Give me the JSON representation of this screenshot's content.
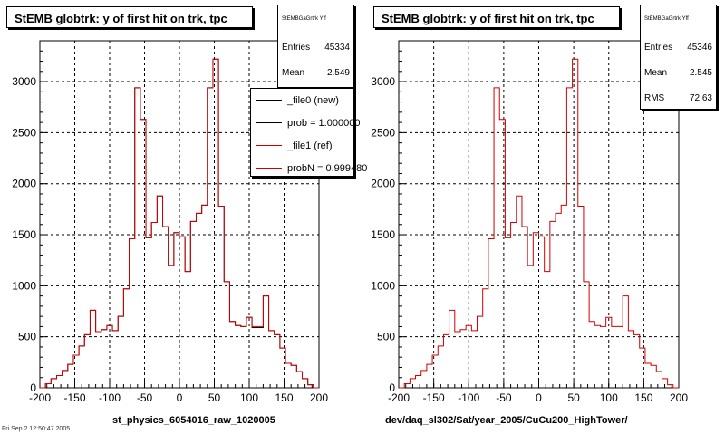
{
  "footer": "Fri Sep  2 12:50:47 2005",
  "colors": {
    "new": "#000000",
    "ref": "#d00000",
    "grid": "#000000"
  },
  "legend": {
    "items": [
      {
        "label": "_file0 (new)",
        "color": "#000000"
      },
      {
        "label": "prob = 1.000000",
        "color": "#000000"
      },
      {
        "label": "_file1 (ref)",
        "color": "#d00000"
      },
      {
        "label": "probN = 0.999480",
        "color": "#d00000"
      }
    ]
  },
  "panels": [
    {
      "title": "StEMB globtrk: y of first hit on trk, tpc",
      "stats": {
        "name": "StEMBGaGrtrk Yff",
        "rows": [
          {
            "label": "Entries",
            "value": "45334"
          },
          {
            "label": "Mean",
            "value": "2.549"
          }
        ]
      },
      "xlabel": "st_physics_6054016_raw_1020005"
    },
    {
      "title": "StEMB globtrk: y of first hit on trk, tpc",
      "stats": {
        "name": "StEMBGaGrtrk Yff",
        "rows": [
          {
            "label": "Entries",
            "value": "45346"
          },
          {
            "label": "Mean",
            "value": "2.545"
          },
          {
            "label": "RMS",
            "value": "72.63"
          }
        ]
      },
      "xlabel": "dev/daq_sl302/Sat/year_2005/CuCu200_HighTower/"
    }
  ],
  "chart_data": [
    {
      "type": "line",
      "title": "StEMB globtrk: y of first hit on trk, tpc",
      "xlabel": "st_physics_6054016_raw_1020005",
      "xlim": [
        -200,
        200
      ],
      "ylim": [
        0,
        3400
      ],
      "xticks": [
        -200,
        -150,
        -100,
        -50,
        0,
        50,
        100,
        150,
        200
      ],
      "yticks": [
        0,
        500,
        1000,
        1500,
        2000,
        2500,
        3000
      ],
      "grid": true,
      "legend_position": "top-right",
      "bin_width": 8,
      "x": [
        -196,
        -188,
        -180,
        -172,
        -164,
        -156,
        -148,
        -140,
        -132,
        -124,
        -116,
        -108,
        -100,
        -92,
        -84,
        -76,
        -68,
        -60,
        -52,
        -44,
        -36,
        -28,
        -20,
        -12,
        -4,
        4,
        12,
        20,
        28,
        36,
        44,
        52,
        60,
        68,
        76,
        84,
        92,
        100,
        108,
        116,
        124,
        132,
        140,
        148,
        156,
        164,
        172,
        180,
        188,
        196
      ],
      "series": [
        {
          "name": "_file0 (new)",
          "values": [
            0,
            40,
            90,
            120,
            170,
            230,
            320,
            410,
            520,
            760,
            550,
            570,
            610,
            560,
            700,
            970,
            1460,
            2940,
            2630,
            1470,
            1620,
            1880,
            1580,
            1200,
            1520,
            1480,
            1140,
            1630,
            1710,
            1790,
            2940,
            3220,
            1780,
            1040,
            650,
            610,
            600,
            690,
            590,
            590,
            900,
            560,
            520,
            390,
            240,
            220,
            160,
            90,
            30,
            0
          ]
        },
        {
          "name": "_file1 (ref)",
          "values": [
            0,
            40,
            90,
            120,
            170,
            230,
            320,
            410,
            520,
            760,
            550,
            570,
            610,
            560,
            700,
            970,
            1460,
            2940,
            2630,
            1470,
            1620,
            1880,
            1580,
            1200,
            1520,
            1480,
            1140,
            1630,
            1710,
            1790,
            2940,
            3220,
            1780,
            1040,
            650,
            610,
            600,
            690,
            600,
            600,
            900,
            560,
            520,
            390,
            240,
            220,
            160,
            90,
            30,
            0
          ]
        }
      ]
    },
    {
      "type": "line",
      "title": "StEMB globtrk: y of first hit on trk, tpc",
      "xlabel": "dev/daq_sl302/Sat/year_2005/CuCu200_HighTower/",
      "xlim": [
        -200,
        200
      ],
      "ylim": [
        0,
        3400
      ],
      "xticks": [
        -200,
        -150,
        -100,
        -50,
        0,
        50,
        100,
        150,
        200
      ],
      "yticks": [
        0,
        500,
        1000,
        1500,
        2000,
        2500,
        3000
      ],
      "grid": true,
      "bin_width": 8,
      "x": [
        -196,
        -188,
        -180,
        -172,
        -164,
        -156,
        -148,
        -140,
        -132,
        -124,
        -116,
        -108,
        -100,
        -92,
        -84,
        -76,
        -68,
        -60,
        -52,
        -44,
        -36,
        -28,
        -20,
        -12,
        -4,
        4,
        12,
        20,
        28,
        36,
        44,
        52,
        60,
        68,
        76,
        84,
        92,
        100,
        108,
        116,
        124,
        132,
        140,
        148,
        156,
        164,
        172,
        180,
        188,
        196
      ],
      "series": [
        {
          "values": [
            0,
            40,
            90,
            120,
            170,
            230,
            320,
            410,
            520,
            760,
            550,
            570,
            610,
            560,
            700,
            970,
            1460,
            2940,
            2630,
            1470,
            1620,
            1880,
            1580,
            1200,
            1520,
            1480,
            1140,
            1630,
            1710,
            1790,
            2940,
            3220,
            1780,
            1040,
            650,
            610,
            600,
            690,
            600,
            600,
            900,
            560,
            520,
            390,
            240,
            220,
            160,
            90,
            30,
            0
          ]
        }
      ]
    }
  ]
}
